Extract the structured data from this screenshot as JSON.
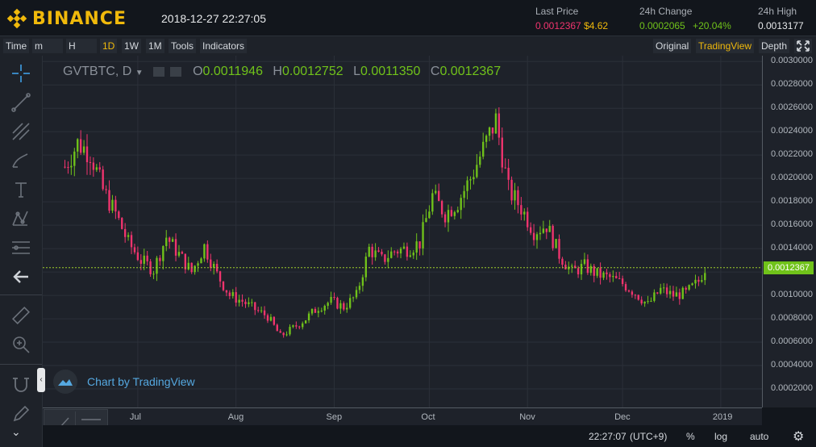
{
  "brand": {
    "name": "BINANCE",
    "color": "#f0b90b"
  },
  "datetime": "2018-12-27 22:27:05",
  "stats": {
    "last_price": {
      "label": "Last Price",
      "value_btc": "0.0012367",
      "value_usd": "$4.62"
    },
    "change_24h": {
      "label": "24h Change",
      "value": "0.0002065",
      "percent": "+20.04%"
    },
    "high_24h": {
      "label": "24h High",
      "value": "0.0013177"
    }
  },
  "toolbar": {
    "time": "Time",
    "minute": "m",
    "hour": "H",
    "intervals": [
      "1D",
      "1W",
      "1M"
    ],
    "active_interval": "1D",
    "tools": "Tools",
    "indicators": "Indicators",
    "views": [
      "Original",
      "TradingView",
      "Depth"
    ],
    "active_view": "TradingView"
  },
  "legend": {
    "symbol": "GVTBTC, D",
    "open_label": "O",
    "open": "0.0011946",
    "high_label": "H",
    "high": "0.0012752",
    "low_label": "L",
    "low": "0.0011350",
    "close_label": "C",
    "close": "0.0012367"
  },
  "badge": {
    "text": "Chart by TradingView"
  },
  "price_tag": "0.0012367",
  "bottom": {
    "time": "22:27:07",
    "tz": "(UTC+9)",
    "percent": "%",
    "log": "log",
    "auto": "auto"
  },
  "icons": {
    "crosshair": "crosshair-icon",
    "trendline": "trendline-icon",
    "pitchfork": "pitchfork-icon",
    "brush": "brush-icon",
    "text": "text-icon",
    "pattern": "pattern-icon",
    "fib": "fib-icon",
    "back": "arrow-left-icon",
    "ruler": "ruler-icon",
    "zoom": "zoom-icon",
    "magnet": "magnet-icon",
    "pencil": "pencil-icon",
    "gear": "gear-icon",
    "fullscreen": "fullscreen-icon"
  },
  "chart_data": {
    "type": "candlestick",
    "symbol": "GVTBTC",
    "interval": "D",
    "y_ticks": [
      "0.0030000",
      "0.0028000",
      "0.0026000",
      "0.0024000",
      "0.0022000",
      "0.0020000",
      "0.0018000",
      "0.0016000",
      "0.0014000",
      "0.0012000",
      "0.0010000",
      "0.0008000",
      "0.0006000",
      "0.0004000",
      "0.0002000"
    ],
    "ylim": [
      0.0,
      0.003
    ],
    "x_ticks": [
      "Jul",
      "Aug",
      "Sep",
      "Oct",
      "Nov",
      "Dec",
      "2019"
    ],
    "last_price_line": 0.0012367,
    "colors": {
      "up": "#70c21a",
      "down": "#f0346e"
    },
    "series": [
      {
        "date": "2018-06-08",
        "close": 0.0021
      },
      {
        "date": "2018-06-12",
        "close": 0.0023
      },
      {
        "date": "2018-06-16",
        "close": 0.00222
      },
      {
        "date": "2018-06-20",
        "close": 0.0019
      },
      {
        "date": "2018-06-24",
        "close": 0.0017
      },
      {
        "date": "2018-06-28",
        "close": 0.00145
      },
      {
        "date": "2018-07-02",
        "close": 0.0013
      },
      {
        "date": "2018-07-06",
        "close": 0.00122
      },
      {
        "date": "2018-07-10",
        "close": 0.0015
      },
      {
        "date": "2018-07-14",
        "close": 0.00135
      },
      {
        "date": "2018-07-18",
        "close": 0.0012
      },
      {
        "date": "2018-07-22",
        "close": 0.00142
      },
      {
        "date": "2018-07-26",
        "close": 0.00118
      },
      {
        "date": "2018-07-30",
        "close": 0.001
      },
      {
        "date": "2018-08-03",
        "close": 0.00095
      },
      {
        "date": "2018-08-07",
        "close": 0.00088
      },
      {
        "date": "2018-08-11",
        "close": 0.00082
      },
      {
        "date": "2018-08-15",
        "close": 0.00065
      },
      {
        "date": "2018-08-19",
        "close": 0.00072
      },
      {
        "date": "2018-08-23",
        "close": 0.0008
      },
      {
        "date": "2018-08-27",
        "close": 0.0009
      },
      {
        "date": "2018-08-31",
        "close": 0.00095
      },
      {
        "date": "2018-09-04",
        "close": 0.0009
      },
      {
        "date": "2018-09-08",
        "close": 0.001
      },
      {
        "date": "2018-09-12",
        "close": 0.0014
      },
      {
        "date": "2018-09-16",
        "close": 0.0013
      },
      {
        "date": "2018-09-20",
        "close": 0.00138
      },
      {
        "date": "2018-09-24",
        "close": 0.0014
      },
      {
        "date": "2018-09-28",
        "close": 0.00145
      },
      {
        "date": "2018-10-02",
        "close": 0.00185
      },
      {
        "date": "2018-10-06",
        "close": 0.0017
      },
      {
        "date": "2018-10-10",
        "close": 0.0018
      },
      {
        "date": "2018-10-14",
        "close": 0.002
      },
      {
        "date": "2018-10-18",
        "close": 0.00225
      },
      {
        "date": "2018-10-22",
        "close": 0.0025
      },
      {
        "date": "2018-10-26",
        "close": 0.0019
      },
      {
        "date": "2018-10-30",
        "close": 0.00175
      },
      {
        "date": "2018-11-03",
        "close": 0.00155
      },
      {
        "date": "2018-11-07",
        "close": 0.0016
      },
      {
        "date": "2018-11-11",
        "close": 0.00135
      },
      {
        "date": "2018-11-15",
        "close": 0.0012
      },
      {
        "date": "2018-11-19",
        "close": 0.00125
      },
      {
        "date": "2018-11-23",
        "close": 0.00118
      },
      {
        "date": "2018-11-27",
        "close": 0.00115
      },
      {
        "date": "2018-12-01",
        "close": 0.0011
      },
      {
        "date": "2018-12-05",
        "close": 0.00102
      },
      {
        "date": "2018-12-09",
        "close": 0.00092
      },
      {
        "date": "2018-12-13",
        "close": 0.00105
      },
      {
        "date": "2018-12-17",
        "close": 0.001
      },
      {
        "date": "2018-12-21",
        "close": 0.00102
      },
      {
        "date": "2018-12-25",
        "close": 0.00112
      },
      {
        "date": "2018-12-27",
        "close": 0.0012367
      }
    ]
  }
}
